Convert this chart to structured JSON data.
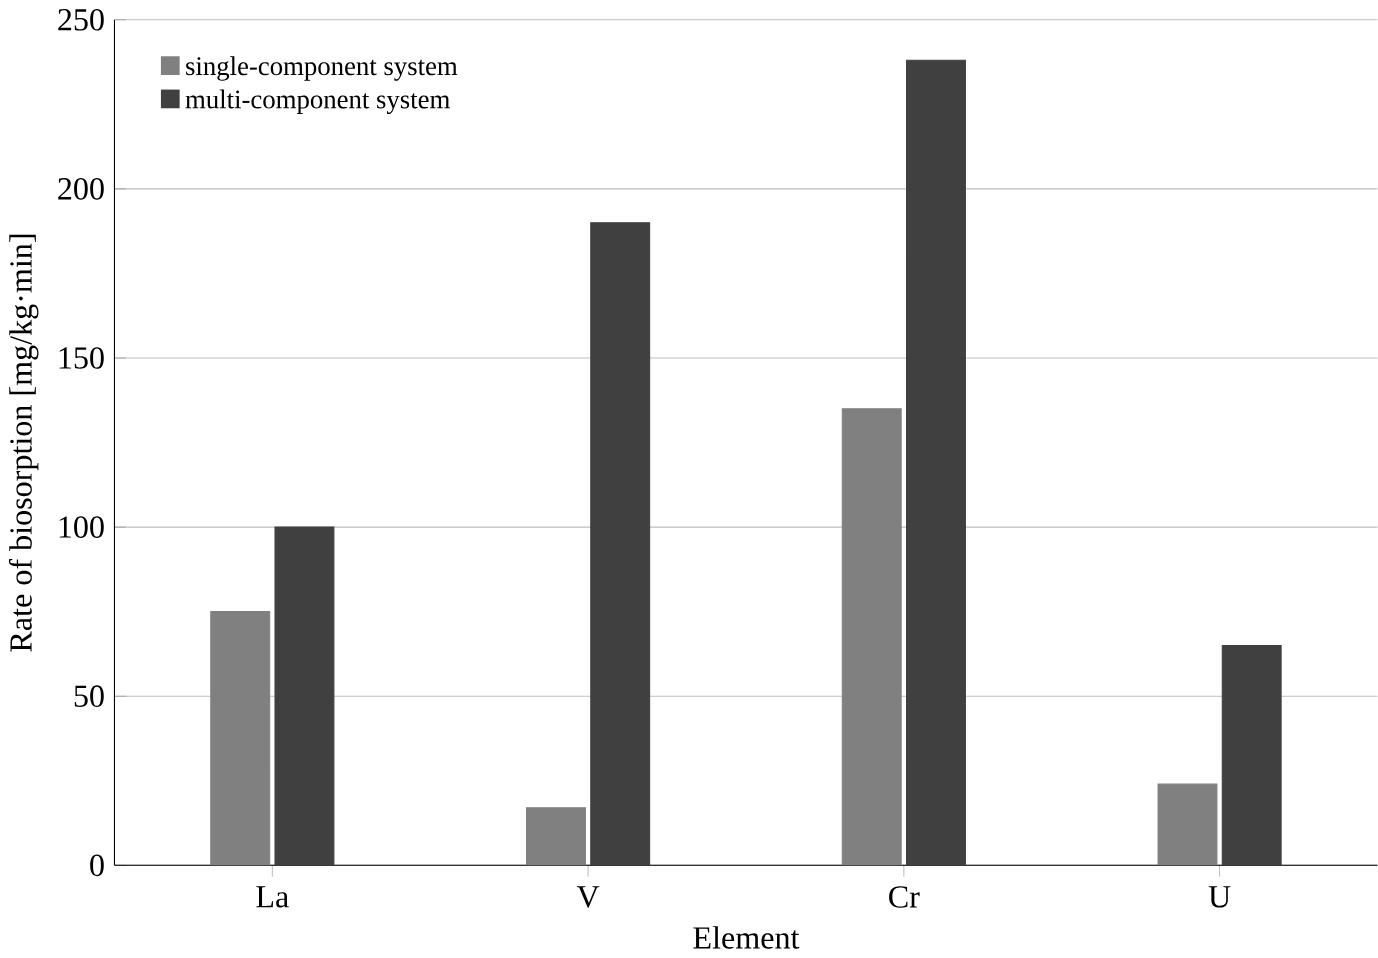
{
  "chart_data": {
    "type": "bar",
    "xlabel": "Element",
    "ylabel": "Rate of biosorption [mg/kg·min]",
    "categories": [
      "La",
      "V",
      "Cr",
      "U"
    ],
    "series": [
      {
        "name": "single-component system",
        "color": "#808080",
        "values": [
          75,
          17,
          135,
          24
        ]
      },
      {
        "name": "multi-component system",
        "color": "#404040",
        "values": [
          100,
          190,
          238,
          65
        ]
      }
    ],
    "ylim": [
      0,
      250
    ],
    "yticks": [
      0,
      50,
      100,
      150,
      200,
      250
    ],
    "grid": "y",
    "legend": "top left"
  }
}
